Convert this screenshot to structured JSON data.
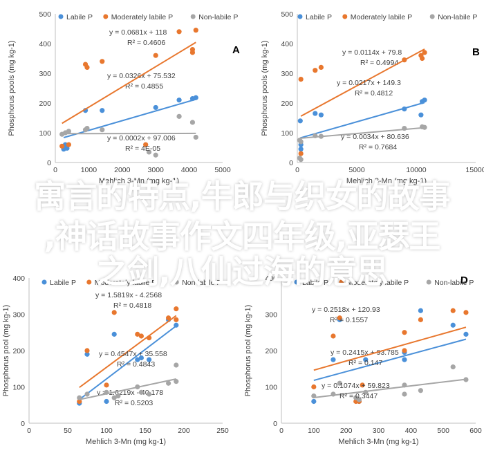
{
  "colors": {
    "labile": "#4a90d9",
    "moderately": "#e8772e",
    "nonlabile": "#a6a6a6",
    "axis": "#bfbfbf",
    "text": "#404040",
    "overlay": "#ffffff"
  },
  "overlay": {
    "line1": "寓言的特点,牛郎与织女的故事",
    "line2": ",神话故事作文四年级,亚瑟王",
    "line3": "之剑,八仙过海的意思"
  },
  "chart_data": [
    {
      "type": "scatter",
      "panel_label": "A",
      "xlabel": "Mehlich 3-Mn (mg kg-1)",
      "ylabel": "Phosphorus pools (mg kg-1)",
      "xlim": [
        0,
        5000
      ],
      "ylim": [
        0,
        500
      ],
      "xticks": [
        "0",
        "1000",
        "2000",
        "3000",
        "4000",
        "5000"
      ],
      "yticks": [
        "0",
        "100",
        "200",
        "300",
        "400",
        "500"
      ],
      "legend": [
        "Labile P",
        "Moderately labile P",
        "Non-labile P"
      ],
      "series": [
        {
          "name": "Labile P",
          "trend": [
            0.0326,
            75.532
          ],
          "equation": "y = 0.0326x + 75.532",
          "r2": "R² = 0.4855",
          "points": [
            [
              250,
              45
            ],
            [
              350,
              48
            ],
            [
              900,
              175
            ],
            [
              1400,
              175
            ],
            [
              3000,
              185
            ],
            [
              3700,
              210
            ],
            [
              4100,
              215
            ],
            [
              4200,
              218
            ],
            [
              300,
              60
            ]
          ]
        },
        {
          "name": "Moderately labile P",
          "trend": [
            0.0681,
            118
          ],
          "equation": "y = 0.0681x + 118",
          "r2": "R² = 0.4606",
          "points": [
            [
              200,
              55
            ],
            [
              400,
              60
            ],
            [
              900,
              330
            ],
            [
              950,
              320
            ],
            [
              1400,
              340
            ],
            [
              2700,
              60
            ],
            [
              3000,
              360
            ],
            [
              3700,
              440
            ],
            [
              4100,
              380
            ],
            [
              4200,
              445
            ],
            [
              4100,
              370
            ]
          ]
        },
        {
          "name": "Non-labile P",
          "trend": [
            0.0002,
            97.006
          ],
          "equation": "y = 0.0002x + 97.006",
          "r2": "R² = 4E-05",
          "points": [
            [
              200,
              95
            ],
            [
              300,
              100
            ],
            [
              400,
              105
            ],
            [
              900,
              110
            ],
            [
              950,
              115
            ],
            [
              1400,
              110
            ],
            [
              2800,
              35
            ],
            [
              3000,
              25
            ],
            [
              3700,
              155
            ],
            [
              4100,
              135
            ],
            [
              4200,
              85
            ]
          ]
        }
      ]
    },
    {
      "type": "scatter",
      "panel_label": "B",
      "xlabel": "Mehlich 3-Mn (mg kg-1)",
      "ylabel": "Phosphorus pools (mg kg-1)",
      "xlim": [
        0,
        15000
      ],
      "ylim": [
        0,
        500
      ],
      "xticks": [
        "0",
        "5000",
        "10000",
        "15000"
      ],
      "yticks": [
        "0",
        "100",
        "200",
        "300",
        "400",
        "500"
      ],
      "legend": [
        "Labile P",
        "Moderately labile P",
        "Non-labile P"
      ],
      "series": [
        {
          "name": "Labile P",
          "trend": [
            0.0114,
            79.8
          ],
          "equation": "y = 0.0114x + 79.8",
          "r2": "R² = 0.4994",
          "points": [
            [
              250,
              140
            ],
            [
              300,
              60
            ],
            [
              1500,
              165
            ],
            [
              2000,
              160
            ],
            [
              9000,
              180
            ],
            [
              10500,
              205
            ],
            [
              10700,
              210
            ],
            [
              10400,
              160
            ],
            [
              300,
              45
            ]
          ]
        },
        {
          "name": "Moderately labile P",
          "trend": [
            0.0217,
            149.3
          ],
          "equation": "y = 0.0217x + 149.3",
          "r2": "R² = 0.4812",
          "points": [
            [
              300,
              280
            ],
            [
              1500,
              310
            ],
            [
              2000,
              320
            ],
            [
              9000,
              345
            ],
            [
              10500,
              350
            ],
            [
              10700,
              370
            ],
            [
              10400,
              360
            ],
            [
              300,
              30
            ]
          ]
        },
        {
          "name": "Non-labile P",
          "trend": [
            0.0034,
            80.636
          ],
          "equation": "y = 0.0034x + 80.636",
          "r2": "R² = 0.7684",
          "points": [
            [
              200,
              75
            ],
            [
              300,
              70
            ],
            [
              1500,
              90
            ],
            [
              2000,
              88
            ],
            [
              9000,
              115
            ],
            [
              10500,
              120
            ],
            [
              10700,
              118
            ],
            [
              200,
              15
            ],
            [
              300,
              10
            ]
          ]
        }
      ]
    },
    {
      "type": "scatter",
      "panel_label": "C",
      "xlabel": "Mehlich 3-Mn (mg kg-1)",
      "ylabel": "Phosphorus pool (mg kg-1)",
      "xlim": [
        0,
        250
      ],
      "ylim": [
        0,
        400
      ],
      "xticks": [
        "0",
        "50",
        "100",
        "150",
        "200",
        "250"
      ],
      "yticks": [
        "0",
        "100",
        "200",
        "300",
        "400"
      ],
      "legend": [
        "Labile P",
        "Moderately labile P",
        "Non-labile P"
      ],
      "series": [
        {
          "name": "Labile P",
          "trend": [
            1.6219,
            -40.178
          ],
          "equation": "y = 1.6219x - 40.178",
          "r2": "R² = 0.5203",
          "points": [
            [
              65,
              55
            ],
            [
              75,
              190
            ],
            [
              100,
              60
            ],
            [
              110,
              245
            ],
            [
              140,
              175
            ],
            [
              145,
              180
            ],
            [
              155,
              175
            ],
            [
              180,
              285
            ],
            [
              190,
              270
            ]
          ]
        },
        {
          "name": "Moderately labile P",
          "trend": [
            1.5819,
            -4.2568
          ],
          "equation": "y = 1.5819x - 4.2568",
          "r2": "R² = 0.4818",
          "points": [
            [
              65,
              60
            ],
            [
              75,
              200
            ],
            [
              100,
              105
            ],
            [
              110,
              305
            ],
            [
              140,
              245
            ],
            [
              145,
              240
            ],
            [
              155,
              235
            ],
            [
              180,
              290
            ],
            [
              190,
              285
            ],
            [
              190,
              315
            ]
          ]
        },
        {
          "name": "Non-labile P",
          "trend": [
            0.4547,
            35.558
          ],
          "equation": "y = 0.4547x + 35.558",
          "r2": "R² = 0.4843",
          "points": [
            [
              65,
              70
            ],
            [
              75,
              80
            ],
            [
              100,
              85
            ],
            [
              110,
              70
            ],
            [
              115,
              75
            ],
            [
              140,
              100
            ],
            [
              145,
              85
            ],
            [
              155,
              80
            ],
            [
              180,
              110
            ],
            [
              190,
              160
            ],
            [
              190,
              115
            ]
          ]
        }
      ]
    },
    {
      "type": "scatter",
      "panel_label": "D",
      "xlabel": "Mehlich 3-Mn (mg kg-1)",
      "ylabel": "Phosphorus pool (mg kg-1)",
      "xlim": [
        0,
        600
      ],
      "ylim": [
        0,
        400
      ],
      "xticks": [
        "0",
        "100",
        "200",
        "300",
        "400",
        "500",
        "600"
      ],
      "yticks": [
        "0",
        "100",
        "200",
        "300",
        "400"
      ],
      "legend": [
        "Labile P",
        "Moderately labile P",
        "Non-labile P"
      ],
      "series": [
        {
          "name": "Labile P",
          "trend": [
            0.2415,
            93.785
          ],
          "equation": "y = 0.2415x + 93.785",
          "r2": "R² = 0.147",
          "points": [
            [
              100,
              60
            ],
            [
              160,
              175
            ],
            [
              180,
              285
            ],
            [
              240,
              60
            ],
            [
              260,
              175
            ],
            [
              380,
              195
            ],
            [
              380,
              175
            ],
            [
              430,
              310
            ],
            [
              530,
              270
            ],
            [
              570,
              245
            ]
          ]
        },
        {
          "name": "Moderately labile P",
          "trend": [
            0.2518,
            120.93
          ],
          "equation": "y = 0.2518x + 120.93",
          "r2": "R² = 0.1557",
          "points": [
            [
              100,
              100
            ],
            [
              160,
              240
            ],
            [
              180,
              290
            ],
            [
              230,
              60
            ],
            [
              240,
              60
            ],
            [
              250,
              105
            ],
            [
              380,
              250
            ],
            [
              380,
              200
            ],
            [
              430,
              285
            ],
            [
              530,
              310
            ],
            [
              570,
              305
            ]
          ]
        },
        {
          "name": "Non-labile P",
          "trend": [
            0.1074,
            59.823
          ],
          "equation": "y = 0.1074x + 59.823",
          "r2": "R² = 0.3447",
          "points": [
            [
              100,
              75
            ],
            [
              160,
              80
            ],
            [
              180,
              110
            ],
            [
              230,
              70
            ],
            [
              240,
              65
            ],
            [
              260,
              85
            ],
            [
              380,
              80
            ],
            [
              380,
              105
            ],
            [
              430,
              90
            ],
            [
              530,
              155
            ],
            [
              570,
              120
            ]
          ]
        }
      ]
    }
  ]
}
